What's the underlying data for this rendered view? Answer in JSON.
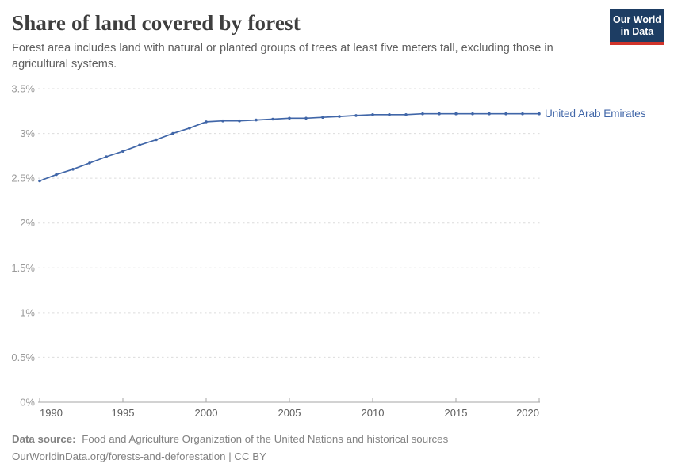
{
  "header": {
    "title": "Share of land covered by forest",
    "subtitle": "Forest area includes land with natural or planted groups of trees at least five meters tall, excluding those in agricultural systems.",
    "logo": {
      "line1": "Our World",
      "line2": "in Data",
      "bg_color": "#1d3d63",
      "accent_color": "#d1342b"
    }
  },
  "chart_data": {
    "type": "line",
    "title": "Share of land covered by forest",
    "xlabel": "",
    "ylabel": "",
    "xlim": [
      1990,
      2020
    ],
    "ylim": [
      0,
      3.5
    ],
    "grid": "horizontal-dashed",
    "legend_position": "end-of-line",
    "x": [
      1990,
      1991,
      1992,
      1993,
      1994,
      1995,
      1996,
      1997,
      1998,
      1999,
      2000,
      2001,
      2002,
      2003,
      2004,
      2005,
      2006,
      2007,
      2008,
      2009,
      2010,
      2011,
      2012,
      2013,
      2014,
      2015,
      2016,
      2017,
      2018,
      2019,
      2020
    ],
    "series": [
      {
        "name": "United Arab Emirates",
        "color": "#4066a8",
        "values": [
          2.47,
          2.54,
          2.6,
          2.67,
          2.74,
          2.8,
          2.87,
          2.93,
          3.0,
          3.06,
          3.13,
          3.14,
          3.14,
          3.15,
          3.16,
          3.17,
          3.17,
          3.18,
          3.19,
          3.2,
          3.21,
          3.21,
          3.21,
          3.22,
          3.22,
          3.22,
          3.22,
          3.22,
          3.22,
          3.22,
          3.22
        ]
      }
    ],
    "yticks": [
      {
        "value": 0,
        "label": "0%"
      },
      {
        "value": 0.5,
        "label": "0.5%"
      },
      {
        "value": 1,
        "label": "1%"
      },
      {
        "value": 1.5,
        "label": "1.5%"
      },
      {
        "value": 2,
        "label": "2%"
      },
      {
        "value": 2.5,
        "label": "2.5%"
      },
      {
        "value": 3,
        "label": "3%"
      },
      {
        "value": 3.5,
        "label": "3.5%"
      }
    ],
    "xticks": [
      {
        "value": 1990,
        "label": "1990"
      },
      {
        "value": 1995,
        "label": "1995"
      },
      {
        "value": 2000,
        "label": "2000"
      },
      {
        "value": 2005,
        "label": "2005"
      },
      {
        "value": 2010,
        "label": "2010"
      },
      {
        "value": 2015,
        "label": "2015"
      },
      {
        "value": 2020,
        "label": "2020"
      }
    ],
    "entity_label": "United Arab Emirates",
    "axis_color": "#a6a6a6",
    "gridline_color": "#dcdcdc",
    "ytick_label_color": "#9a9a9a",
    "xtick_label_color": "#5d5d5d"
  },
  "footer": {
    "datasource_label": "Data source:",
    "datasource_text": "Food and Agriculture Organization of the United Nations and historical sources",
    "citation": "OurWorldinData.org/forests-and-deforestation | CC BY"
  }
}
